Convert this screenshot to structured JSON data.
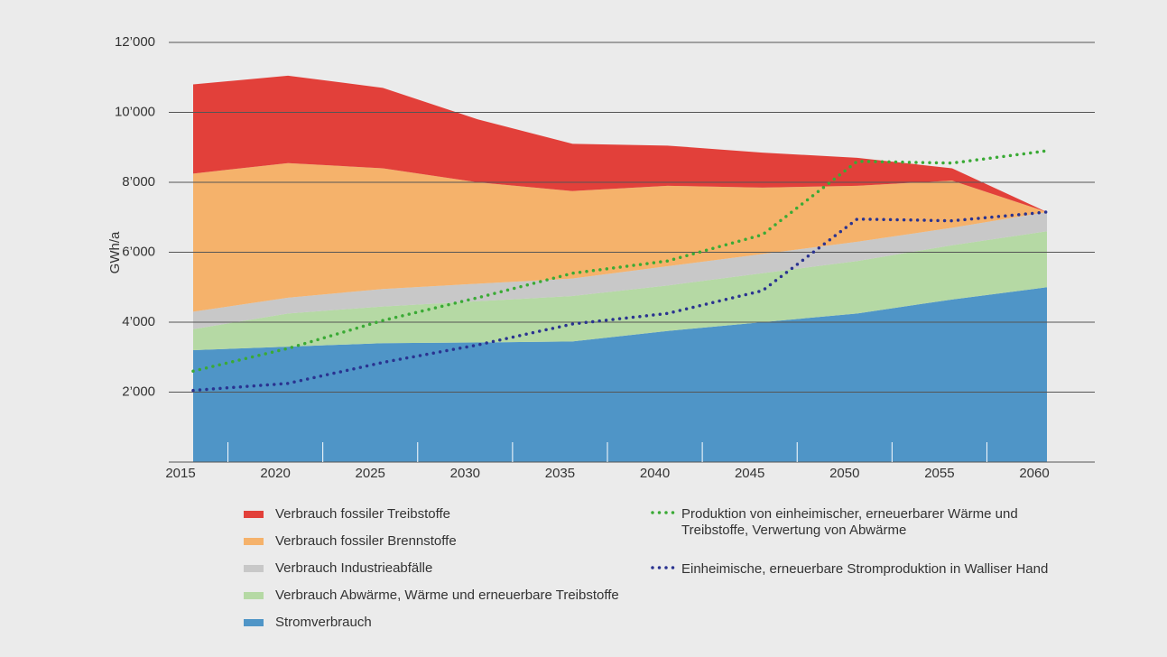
{
  "chart_data": {
    "type": "area",
    "y_label": "GWh/a",
    "x": [
      2015,
      2020,
      2025,
      2030,
      2035,
      2040,
      2045,
      2050,
      2055,
      2060
    ],
    "ylim": [
      0,
      12000
    ],
    "yticks": [
      {
        "value": 2000,
        "label": "2’000"
      },
      {
        "value": 4000,
        "label": "4’000"
      },
      {
        "value": 6000,
        "label": "6’000"
      },
      {
        "value": 8000,
        "label": "8’000"
      },
      {
        "value": 10000,
        "label": "10’000"
      },
      {
        "value": 12000,
        "label": "12’000"
      }
    ],
    "grid": true,
    "series": [
      {
        "name": "Verbrauch fossiler Treibstoffe",
        "kind": "area",
        "color": "#e2403a",
        "values": [
          2550,
          2500,
          2300,
          1800,
          1350,
          1150,
          1000,
          800,
          350,
          0
        ]
      },
      {
        "name": "Verbrauch fossiler Brennstoffe",
        "kind": "area",
        "color": "#f5b26b",
        "values": [
          3950,
          3850,
          3450,
          2900,
          2500,
          2300,
          1900,
          1600,
          1350,
          0
        ]
      },
      {
        "name": "Verbrauch Industrieabfälle",
        "kind": "area",
        "color": "#c8c8c8",
        "values": [
          500,
          450,
          500,
          500,
          500,
          550,
          550,
          550,
          500,
          550
        ]
      },
      {
        "name": "Verbrauch Abwärme, Wärme und erneuerbare Treibstoffe",
        "kind": "area",
        "color": "#b5d9a4",
        "values": [
          600,
          950,
          1050,
          1180,
          1300,
          1300,
          1400,
          1500,
          1550,
          1600
        ]
      },
      {
        "name": "Stromverbrauch",
        "kind": "area",
        "color": "#4f95c7",
        "values": [
          3200,
          3300,
          3400,
          3420,
          3450,
          3750,
          4000,
          4250,
          4650,
          5000
        ]
      },
      {
        "name": "Produktion von einheimischer, erneuerbarer Wärme und Treibstoffe, Verwertung von Abwärme",
        "kind": "line",
        "color": "#3aaa35",
        "values": [
          2600,
          3250,
          4050,
          4700,
          5400,
          5750,
          6500,
          8600,
          8550,
          8900
        ]
      },
      {
        "name": "Einheimische, erneuerbare Stromproduktion in Walliser Hand",
        "kind": "line",
        "color": "#2a3390",
        "values": [
          2050,
          2250,
          2850,
          3350,
          3950,
          4250,
          4900,
          6950,
          6900,
          7150
        ]
      }
    ]
  }
}
